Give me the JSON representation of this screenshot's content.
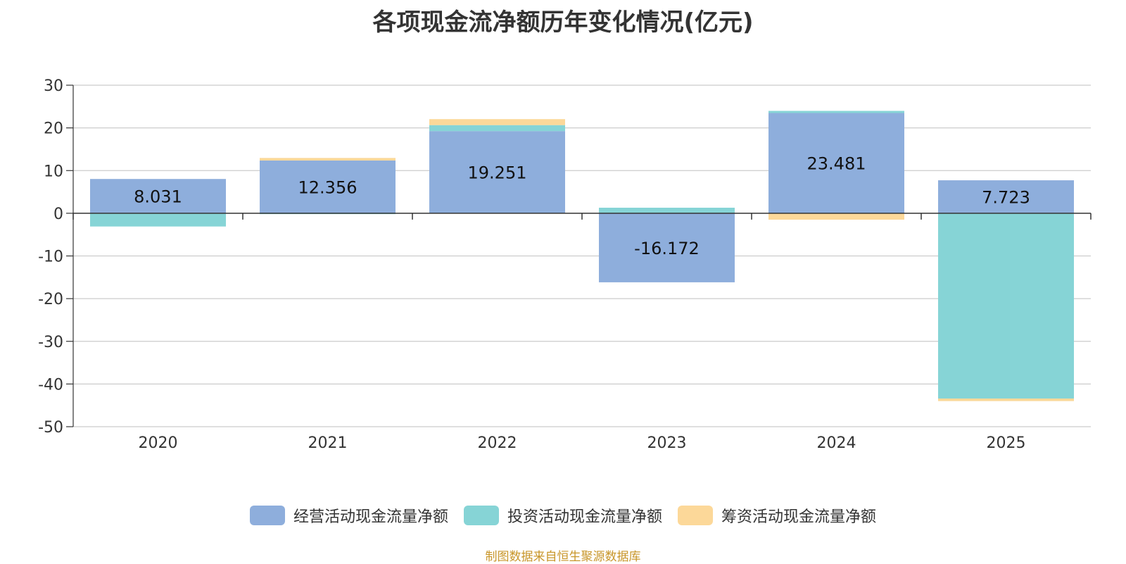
{
  "title": "各项现金流净额历年变化情况(亿元)",
  "source": "制图数据来自恒生聚源数据库",
  "colors": {
    "operating": "#8eaedc",
    "investing": "#86d4d6",
    "financing": "#fcd899",
    "grid": "#cccccc",
    "axis": "#333333"
  },
  "chart_data": {
    "type": "bar",
    "stacked": true,
    "categories": [
      "2020",
      "2021",
      "2022",
      "2023",
      "2024",
      "2025"
    ],
    "ylim": [
      -50,
      30
    ],
    "yticks": [
      30,
      20,
      10,
      0,
      -10,
      -20,
      -30,
      -40,
      -50
    ],
    "grid": true,
    "legend_position": "bottom",
    "series": [
      {
        "name": "经营活动现金流量净额",
        "values": [
          8.031,
          12.356,
          19.251,
          -16.172,
          23.481,
          7.723
        ]
      },
      {
        "name": "投资活动现金流量净额",
        "values": [
          -3.1,
          -0.2,
          1.4,
          1.3,
          0.5,
          -43.4
        ]
      },
      {
        "name": "筹资活动现金流量净额",
        "values": [
          0,
          0.6,
          1.4,
          0,
          -1.5,
          -0.6
        ]
      }
    ],
    "data_labels": [
      "8.031",
      "12.356",
      "19.251",
      "-16.172",
      "23.481",
      "7.723"
    ]
  }
}
